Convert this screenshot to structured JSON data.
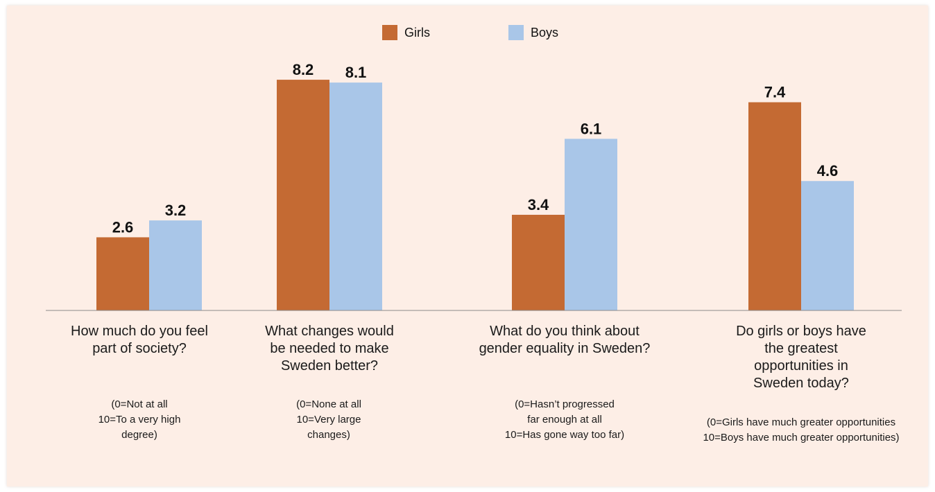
{
  "chart_data": {
    "type": "bar",
    "categories": [
      "How much do you feel part of society?",
      "What changes would be needed to make Sweden better?",
      "What do you think about gender equality in Sweden?",
      "Do girls or boys have the greatest opportunities in Sweden today?"
    ],
    "category_lines": [
      [
        "How much do you feel",
        "part of society?"
      ],
      [
        "What changes would",
        "be needed to make",
        "Sweden better?"
      ],
      [
        "What do you think about",
        "gender equality in Sweden?"
      ],
      [
        "Do girls or boys have",
        "the greatest",
        "opportunities in",
        "Sweden today?"
      ]
    ],
    "notes": [
      "(0=Not at all\n10=To a very high\ndegree)",
      "(0=None at all\n10=Very large\nchanges)",
      "(0=Hasn’t progressed\nfar enough at all\n10=Has gone way too far)",
      "(0=Girls have much greater opportunities\n10=Boys have much greater opportunities)"
    ],
    "series": [
      {
        "name": "Girls",
        "color": "#c46a33",
        "values": [
          2.6,
          8.2,
          3.4,
          7.4
        ]
      },
      {
        "name": "Boys",
        "color": "#a9c6e8",
        "values": [
          3.2,
          8.1,
          6.1,
          4.6
        ]
      }
    ],
    "value_labels": [
      [
        "2.6",
        "8.2",
        "3.4",
        "7.4"
      ],
      [
        "3.2",
        "8.1",
        "6.1",
        "4.6"
      ]
    ],
    "ylim": [
      0,
      10
    ],
    "grid": false,
    "legend_position": "top-center"
  }
}
